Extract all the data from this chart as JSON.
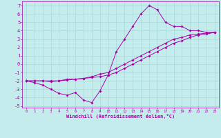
{
  "xlabel": "Windchill (Refroidissement éolien,°C)",
  "xlim": [
    -0.5,
    23.5
  ],
  "ylim": [
    -5.2,
    7.5
  ],
  "xticks": [
    0,
    1,
    2,
    3,
    4,
    5,
    6,
    7,
    8,
    9,
    10,
    11,
    12,
    13,
    14,
    15,
    16,
    17,
    18,
    19,
    20,
    21,
    22,
    23
  ],
  "yticks": [
    -5,
    -4,
    -3,
    -2,
    -1,
    0,
    1,
    2,
    3,
    4,
    5,
    6,
    7
  ],
  "bg_color": "#c5eced",
  "grid_color": "#a8d8da",
  "line_color": "#aa00aa",
  "line1_x": [
    0,
    1,
    2,
    3,
    4,
    5,
    6,
    7,
    8,
    9,
    10,
    11,
    12,
    13,
    14,
    15,
    16,
    17,
    18,
    19,
    20,
    21,
    22,
    23
  ],
  "line1_y": [
    -2.0,
    -2.2,
    -2.5,
    -3.0,
    -3.5,
    -3.7,
    -3.4,
    -4.3,
    -4.6,
    -3.2,
    -1.3,
    1.5,
    3.0,
    4.5,
    6.0,
    7.0,
    6.5,
    5.0,
    4.5,
    4.5,
    4.0,
    4.0,
    3.8,
    3.8
  ],
  "line2_x": [
    0,
    1,
    2,
    3,
    4,
    5,
    6,
    7,
    8,
    9,
    10,
    11,
    12,
    13,
    14,
    15,
    16,
    17,
    18,
    19,
    20,
    21,
    22,
    23
  ],
  "line2_y": [
    -2.0,
    -2.0,
    -2.0,
    -2.0,
    -2.0,
    -1.8,
    -1.8,
    -1.7,
    -1.5,
    -1.2,
    -1.0,
    -0.5,
    0.0,
    0.5,
    1.0,
    1.5,
    2.0,
    2.5,
    3.0,
    3.2,
    3.5,
    3.6,
    3.7,
    3.8
  ],
  "line3_x": [
    0,
    1,
    2,
    3,
    4,
    5,
    6,
    7,
    8,
    9,
    10,
    11,
    12,
    13,
    14,
    15,
    16,
    17,
    18,
    19,
    20,
    21,
    22,
    23
  ],
  "line3_y": [
    -2.0,
    -2.0,
    -2.0,
    -2.1,
    -2.0,
    -1.9,
    -1.8,
    -1.7,
    -1.6,
    -1.5,
    -1.3,
    -1.0,
    -0.5,
    0.0,
    0.5,
    1.0,
    1.5,
    2.0,
    2.5,
    2.8,
    3.2,
    3.5,
    3.6,
    3.8
  ]
}
